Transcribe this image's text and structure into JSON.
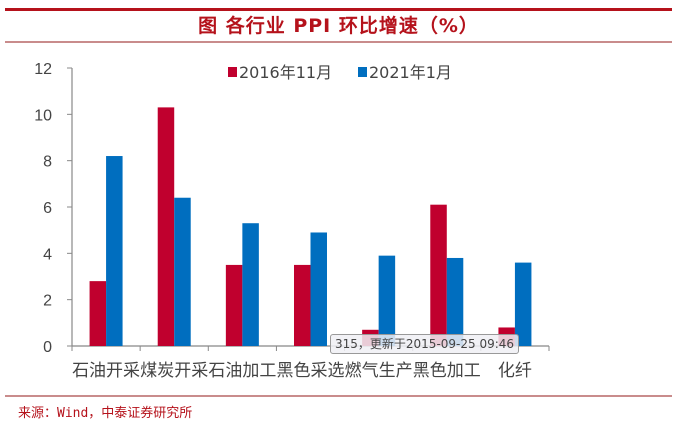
{
  "title": "图  各行业 PPI 环比增速（%）",
  "source": "来源：Wind，中泰证券研究所",
  "tooltip": "315，更新于2015-09-25 09:46",
  "chart_data": {
    "type": "bar",
    "title": "图 各行业 PPI 环比增速（%）",
    "xlabel": "",
    "ylabel": "",
    "ylim": [
      0,
      12
    ],
    "yticks": [
      "0",
      "2",
      "4",
      "6",
      "8",
      "10",
      "12"
    ],
    "categories": [
      "石油开采",
      "煤炭开采",
      "石油加工",
      "黑色采选",
      "燃气生产",
      "黑色加工",
      "化纤"
    ],
    "series": [
      {
        "name": "2016年11月",
        "color": "#c0002e",
        "values": [
          2.8,
          10.3,
          3.5,
          3.5,
          0.7,
          6.1,
          0.8
        ]
      },
      {
        "name": "2021年1月",
        "color": "#006ebf",
        "values": [
          8.2,
          6.4,
          5.3,
          4.9,
          3.9,
          3.8,
          3.6
        ]
      }
    ],
    "legend": "top-center",
    "grid": false
  }
}
